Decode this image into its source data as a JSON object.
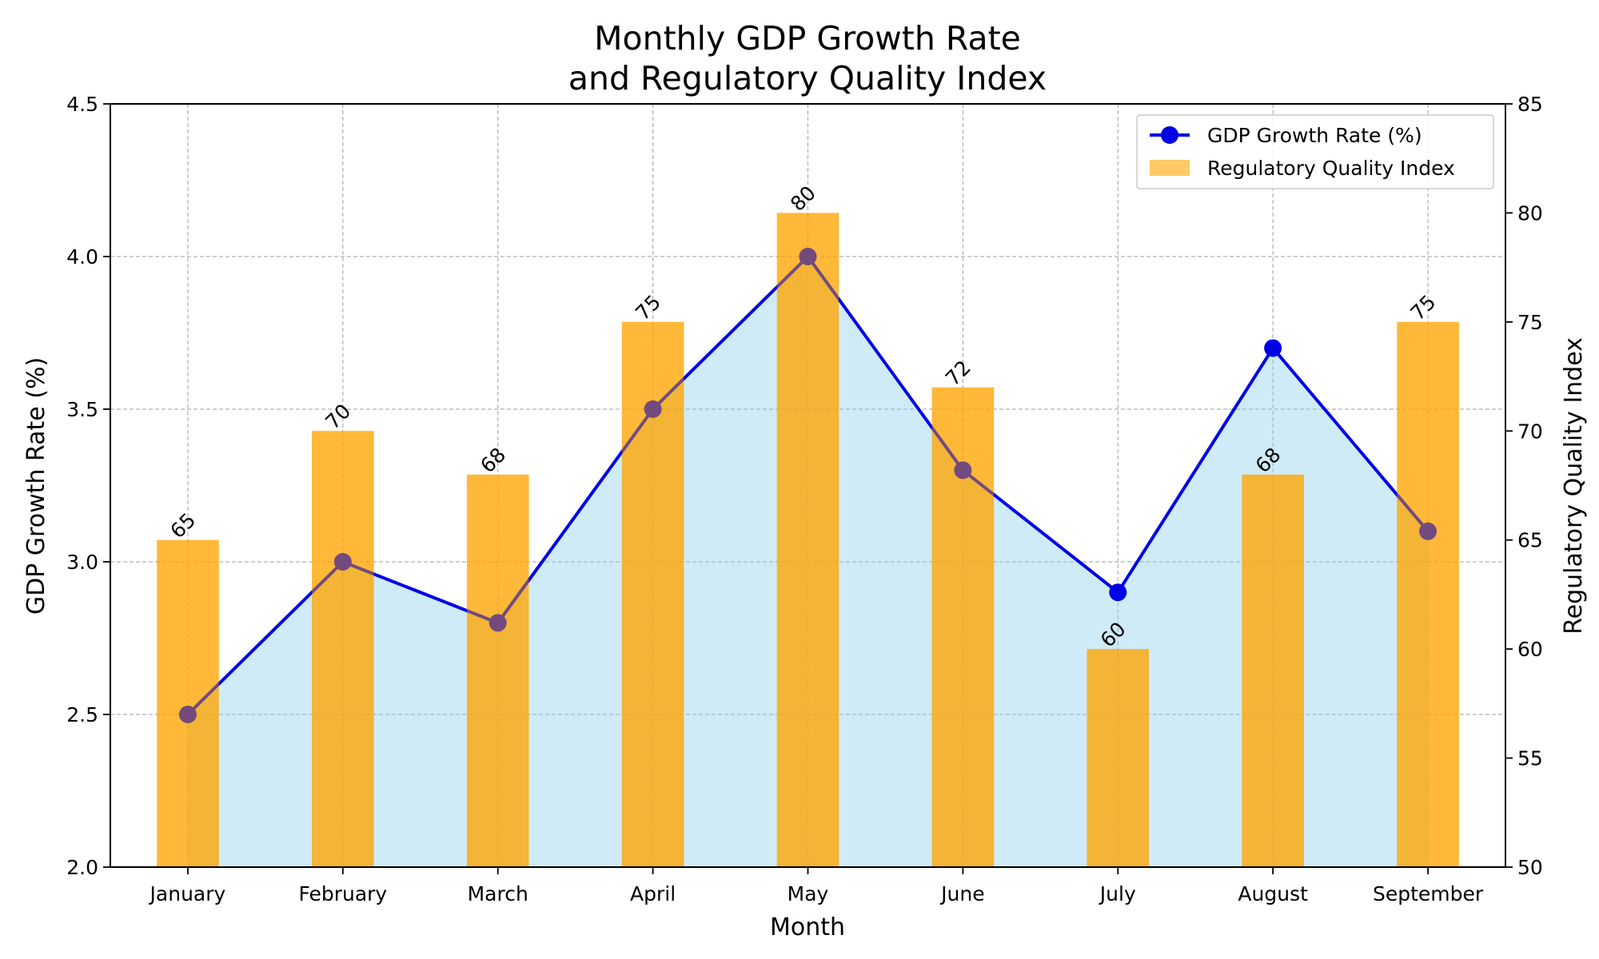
{
  "chart_data": {
    "type": "bar",
    "title_lines": [
      "Monthly GDP Growth Rate",
      "and Regulatory Quality Index"
    ],
    "xlabel": "Month",
    "ylabel": "GDP Growth Rate (%)",
    "y2label": "Regulatory Quality Index",
    "categories": [
      "January",
      "February",
      "March",
      "April",
      "May",
      "June",
      "July",
      "August",
      "September"
    ],
    "ylim": [
      2.0,
      4.5
    ],
    "y2lim": [
      50,
      85
    ],
    "yticks": [
      "2.0",
      "2.5",
      "3.0",
      "3.5",
      "4.0",
      "4.5"
    ],
    "y2ticks": [
      "50",
      "55",
      "60",
      "65",
      "70",
      "75",
      "80",
      "85"
    ],
    "grid": true,
    "legend_position": "top-right",
    "series": [
      {
        "name": "GDP Growth Rate (%)",
        "type": "line",
        "axis": "left",
        "fill_below": true,
        "values": [
          2.5,
          3.0,
          2.8,
          3.5,
          4.0,
          3.3,
          2.9,
          3.7,
          3.1
        ]
      },
      {
        "name": "Regulatory Quality Index",
        "type": "bar",
        "axis": "right",
        "values": [
          65,
          70,
          68,
          75,
          80,
          72,
          60,
          68,
          75
        ],
        "data_labels": [
          "65",
          "70",
          "68",
          "75",
          "80",
          "72",
          "60",
          "68",
          "75"
        ]
      }
    ],
    "colors": {
      "line": "#0000e6",
      "line_fill": "#87ceeb",
      "bar": "#ffa500",
      "grid": "#b0b0b0"
    }
  }
}
